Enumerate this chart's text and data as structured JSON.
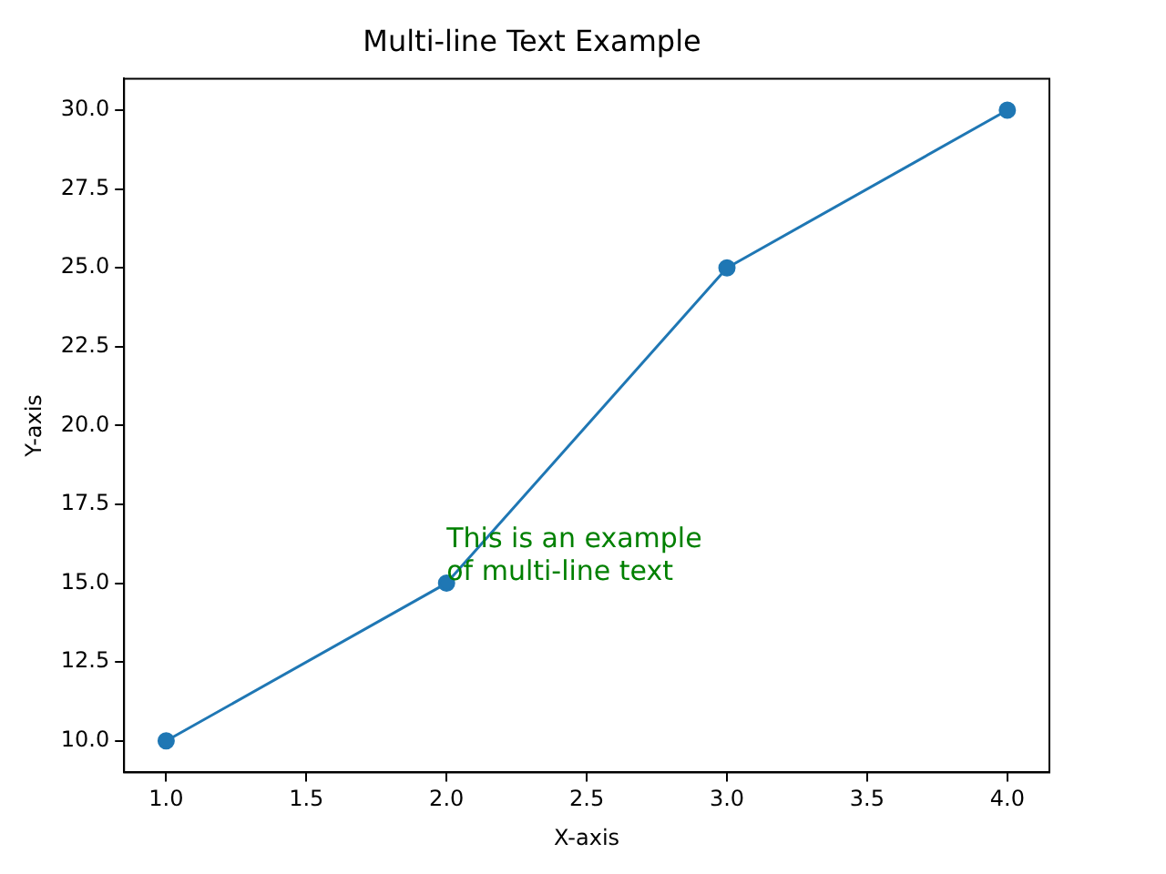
{
  "chart_data": {
    "type": "line",
    "title": "Multi-line Text Example",
    "xlabel": "X-axis",
    "ylabel": "Y-axis",
    "x": [
      1,
      2,
      3,
      4
    ],
    "series": [
      {
        "color": "#1f77b4",
        "values": [
          10,
          15,
          25,
          30
        ]
      }
    ],
    "xlim": [
      0.85,
      4.15
    ],
    "ylim": [
      9,
      31
    ],
    "xticks": [
      {
        "value": 1,
        "label": "1.0"
      },
      {
        "value": 1.5,
        "label": "1.5"
      },
      {
        "value": 2,
        "label": "2.0"
      },
      {
        "value": 2.5,
        "label": "2.5"
      },
      {
        "value": 3,
        "label": "3.0"
      },
      {
        "value": 3.5,
        "label": "3.5"
      },
      {
        "value": 4,
        "label": "4.0"
      }
    ],
    "yticks": [
      {
        "value": 10,
        "label": "10.0"
      },
      {
        "value": 12.5,
        "label": "12.5"
      },
      {
        "value": 15,
        "label": "15.0"
      },
      {
        "value": 17.5,
        "label": "17.5"
      },
      {
        "value": 20,
        "label": "20.0"
      },
      {
        "value": 22.5,
        "label": "22.5"
      },
      {
        "value": 25,
        "label": "25.0"
      },
      {
        "value": 27.5,
        "label": "27.5"
      },
      {
        "value": 30,
        "label": "30.0"
      }
    ],
    "grid": false,
    "legend": false,
    "marker": "circle",
    "line_style": "solid",
    "annotations": [
      {
        "text": "This is an example\nof multi-line text",
        "x": 2,
        "y": 15
      }
    ]
  }
}
